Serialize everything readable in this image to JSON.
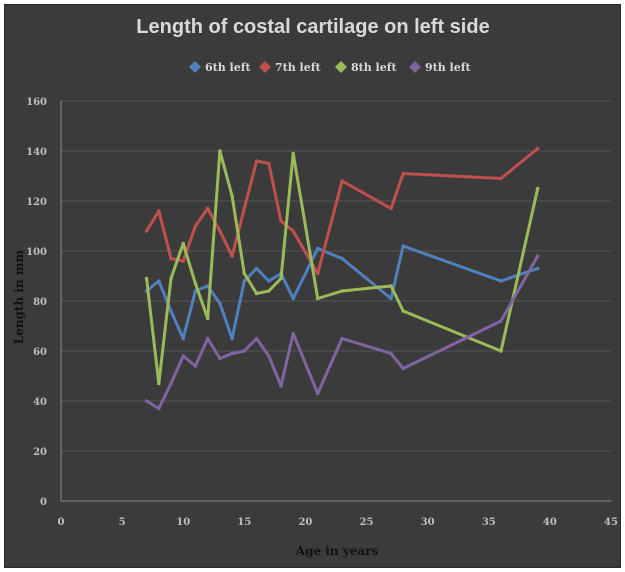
{
  "chart_data": {
    "type": "line",
    "title": "Length of costal cartilage on left side",
    "xlabel": "Age in years",
    "ylabel": "Length in mm",
    "xlim": [
      0,
      45
    ],
    "ylim": [
      0,
      160
    ],
    "xticks": [
      0,
      5,
      10,
      15,
      20,
      25,
      30,
      35,
      40,
      45
    ],
    "yticks": [
      0,
      20,
      40,
      60,
      80,
      100,
      120,
      140,
      160
    ],
    "grid": true,
    "legend_position": "top",
    "series": [
      {
        "name": "6th left",
        "color": "#4f81bd",
        "x": [
          7,
          8,
          9,
          10,
          11,
          12,
          13,
          14,
          15,
          16,
          17,
          18,
          19,
          21,
          23,
          27,
          28,
          36,
          39
        ],
        "y": [
          84,
          88,
          76,
          65,
          84,
          86,
          79,
          65,
          88,
          93,
          88,
          91,
          81,
          101,
          97,
          81,
          102,
          88,
          93
        ]
      },
      {
        "name": "7th left",
        "color": "#c0504d",
        "x": [
          7,
          8,
          9,
          10,
          11,
          12,
          13,
          14,
          15,
          16,
          17,
          18,
          19,
          21,
          23,
          27,
          28,
          36,
          39
        ],
        "y": [
          108,
          116,
          97,
          96,
          110,
          117,
          108,
          98,
          117,
          136,
          135,
          112,
          108,
          91,
          128,
          117,
          131,
          129,
          141
        ]
      },
      {
        "name": "8th left",
        "color": "#9bbb59",
        "x": [
          7,
          8,
          9,
          10,
          11,
          12,
          13,
          14,
          15,
          16,
          17,
          18,
          19,
          21,
          23,
          27,
          28,
          36,
          39
        ],
        "y": [
          89,
          47,
          89,
          103,
          87,
          73,
          140,
          122,
          91,
          83,
          84,
          89,
          139,
          81,
          84,
          86,
          76,
          60,
          125
        ]
      },
      {
        "name": "9th left",
        "color": "#8064a2",
        "x": [
          7,
          8,
          9,
          10,
          11,
          12,
          13,
          14,
          15,
          16,
          17,
          18,
          19,
          21,
          23,
          27,
          28,
          36,
          39
        ],
        "y": [
          40,
          37,
          47,
          58,
          54,
          65,
          57,
          59,
          60,
          65,
          58,
          46,
          67,
          43,
          65,
          59,
          53,
          72,
          98
        ]
      }
    ]
  }
}
